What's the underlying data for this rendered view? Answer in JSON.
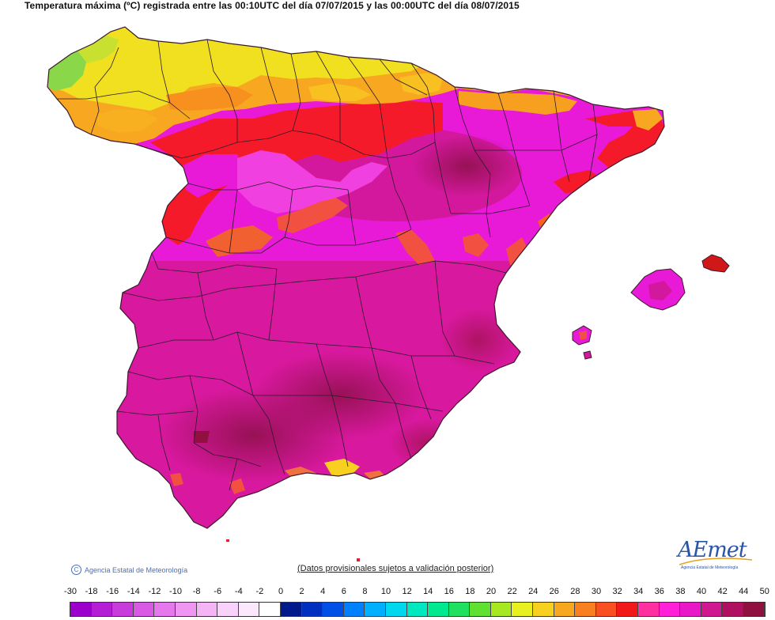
{
  "title": "Temperatura máxima (ºC) registrada entre las 00:10UTC del día 07/07/2015 y las 00:00UTC del día 08/07/2015",
  "map": {
    "region": "España peninsular y Baleares",
    "background_color": "#ffffff",
    "border_color": "#2a1a2a",
    "zone_colors": {
      "galicia_green": "#7fd24a",
      "north_yellow": "#f0e020",
      "north_orange": "#f7a820",
      "meseta_red": "#f51a2a",
      "interior_magenta": "#e81ad8",
      "south_magenta": "#d4189e",
      "hottest_maroon": "#a01250"
    }
  },
  "footer": {
    "copyright_icon": "copyright-icon",
    "copyright_text": "Agencia Estatal de Meteorología",
    "disclaimer": "(Datos provisionales sujetos a validación posterior)",
    "logo_text": "AEmet",
    "logo_subtext": "Agencia Estatal de Meteorología"
  },
  "legend": {
    "labels": [
      "-30",
      "-18",
      "-16",
      "-14",
      "-12",
      "-10",
      "-8",
      "-6",
      "-4",
      "-2",
      "0",
      "2",
      "4",
      "6",
      "8",
      "10",
      "12",
      "14",
      "16",
      "18",
      "20",
      "22",
      "24",
      "26",
      "28",
      "30",
      "32",
      "34",
      "36",
      "38",
      "40",
      "42",
      "44",
      "50"
    ],
    "colors": [
      "#9b00cc",
      "#b41ed4",
      "#c83cdc",
      "#d85ae4",
      "#e478ec",
      "#ee96f2",
      "#f4b4f6",
      "#f8d2fa",
      "#fbe8fc",
      "#ffffff",
      "#001a8c",
      "#0030c0",
      "#0050e8",
      "#0080ff",
      "#00b0ff",
      "#00d8f0",
      "#00e8c0",
      "#00e890",
      "#20e060",
      "#60e030",
      "#a8e820",
      "#e8f020",
      "#f8d020",
      "#f8a820",
      "#f88020",
      "#f85020",
      "#f01818",
      "#ff30a0",
      "#ff20d8",
      "#e818c8",
      "#d01890",
      "#b01060",
      "#901040"
    ]
  }
}
